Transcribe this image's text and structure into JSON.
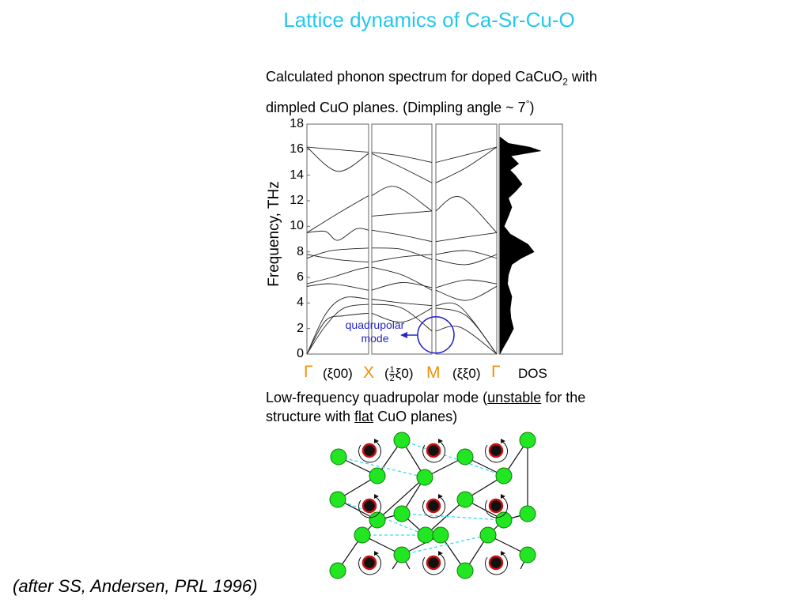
{
  "slide": {
    "title": "Lattice dynamics of Ca-Sr-Cu-O",
    "caption_top": {
      "line1_a": "Calculated phonon spectrum for doped CaCuO",
      "line1_sub": "2",
      "line1_b": " with",
      "line2_a": "dimpled CuO planes. (Dimpling angle ~ 7",
      "line2_sup": "°",
      "line2_b": ")"
    },
    "caption_bottom": {
      "a": "Low-frequency quadrupolar mode (",
      "unstable": "unstable",
      "b": " for the",
      "c": "structure with ",
      "flat": "flat",
      "d": " CuO planes)"
    },
    "citation": "(after SS, Andersen, PRL 1996)"
  },
  "chart_data": {
    "type": "line",
    "ylabel": "Frequency,  THz",
    "ylim": [
      0,
      18
    ],
    "yticks": [
      "0",
      "2",
      "4",
      "6",
      "8",
      "10",
      "12",
      "14",
      "16",
      "18"
    ],
    "x_labels": {
      "gamma1": "Γ",
      "dir1": "(ξ00)",
      "x": "X",
      "dir2_open": "(",
      "dir2_num": "1",
      "dir2_den": "2",
      "dir2_close": "ξ0)",
      "m": "M",
      "dir3": "(ξξ0)",
      "gamma2": "Γ",
      "dos": "DOS"
    },
    "annotation": {
      "line1": "quadrupolar",
      "line2": "mode"
    },
    "panels": [
      {
        "name": "Gamma-X",
        "branches": [
          [
            [
              0,
              0
            ],
            [
              0.3,
              2.2
            ],
            [
              0.6,
              3.6
            ],
            [
              1,
              3.9
            ]
          ],
          [
            [
              0,
              0
            ],
            [
              0.3,
              3.1
            ],
            [
              0.6,
              4.4
            ],
            [
              1,
              4.3
            ]
          ],
          [
            [
              0,
              0
            ],
            [
              0.3,
              2.6
            ],
            [
              0.6,
              3.0
            ],
            [
              1,
              3.2
            ]
          ],
          [
            [
              0,
              5.5
            ],
            [
              0.4,
              6.0
            ],
            [
              0.8,
              6.6
            ],
            [
              1,
              6.8
            ]
          ],
          [
            [
              0,
              5.3
            ],
            [
              0.4,
              5.5
            ],
            [
              1,
              5.0
            ]
          ],
          [
            [
              0,
              7.5
            ],
            [
              0.4,
              8.1
            ],
            [
              1,
              8.3
            ]
          ],
          [
            [
              0,
              7.8
            ],
            [
              0.5,
              7.4
            ],
            [
              1,
              7.2
            ]
          ],
          [
            [
              0,
              9.5
            ],
            [
              0.3,
              9.6
            ],
            [
              0.5,
              8.9
            ],
            [
              0.8,
              9.8
            ],
            [
              1,
              9.7
            ]
          ],
          [
            [
              0,
              9.5
            ],
            [
              0.5,
              11.0
            ],
            [
              1,
              12.4
            ]
          ],
          [
            [
              0,
              16.2
            ],
            [
              0.5,
              14.3
            ],
            [
              1,
              15.7
            ]
          ],
          [
            [
              0,
              16.2
            ],
            [
              0.5,
              16.0
            ],
            [
              1,
              15.8
            ]
          ]
        ]
      },
      {
        "name": "X-M",
        "branches": [
          [
            [
              0,
              3.9
            ],
            [
              0.5,
              3.6
            ],
            [
              1,
              1.8
            ]
          ],
          [
            [
              0,
              4.3
            ],
            [
              0.5,
              4.0
            ],
            [
              1,
              3.8
            ]
          ],
          [
            [
              0,
              3.2
            ],
            [
              0.5,
              2.5
            ],
            [
              1,
              3.6
            ]
          ],
          [
            [
              0,
              6.8
            ],
            [
              0.5,
              6.2
            ],
            [
              1,
              5.0
            ]
          ],
          [
            [
              0,
              5.0
            ],
            [
              0.5,
              5.6
            ],
            [
              1,
              5.2
            ]
          ],
          [
            [
              0,
              8.3
            ],
            [
              0.5,
              8.2
            ],
            [
              1,
              7.4
            ]
          ],
          [
            [
              0,
              7.2
            ],
            [
              0.5,
              7.6
            ],
            [
              1,
              7.8
            ]
          ],
          [
            [
              0,
              9.7
            ],
            [
              0.5,
              9.3
            ],
            [
              1,
              8.8
            ]
          ],
          [
            [
              0,
              10.8
            ],
            [
              0.5,
              11.0
            ],
            [
              1,
              11.2
            ]
          ],
          [
            [
              0,
              12.4
            ],
            [
              0.4,
              13.1
            ],
            [
              1,
              11.2
            ]
          ],
          [
            [
              0,
              15.7
            ],
            [
              0.5,
              14.6
            ],
            [
              1,
              13.4
            ]
          ],
          [
            [
              0,
              15.8
            ],
            [
              0.5,
              15.5
            ],
            [
              1,
              15.0
            ]
          ]
        ]
      },
      {
        "name": "M-Gamma",
        "branches": [
          [
            [
              0,
              1.8
            ],
            [
              0.4,
              2.1
            ],
            [
              1,
              0
            ]
          ],
          [
            [
              0,
              3.8
            ],
            [
              0.4,
              3.7
            ],
            [
              1,
              0
            ]
          ],
          [
            [
              0,
              3.6
            ],
            [
              0.5,
              3.0
            ],
            [
              1,
              0
            ]
          ],
          [
            [
              0,
              5.0
            ],
            [
              0.5,
              4.2
            ],
            [
              1,
              5.3
            ]
          ],
          [
            [
              0,
              5.2
            ],
            [
              0.5,
              5.8
            ],
            [
              1,
              5.5
            ]
          ],
          [
            [
              0,
              7.4
            ],
            [
              0.5,
              7.0
            ],
            [
              1,
              7.8
            ]
          ],
          [
            [
              0,
              7.8
            ],
            [
              0.5,
              8.1
            ],
            [
              1,
              7.5
            ]
          ],
          [
            [
              0,
              8.8
            ],
            [
              0.4,
              9.1
            ],
            [
              1,
              9.5
            ]
          ],
          [
            [
              0,
              11.2
            ],
            [
              0.4,
              12.3
            ],
            [
              1,
              9.5
            ]
          ],
          [
            [
              0,
              13.4
            ],
            [
              0.5,
              14.6
            ],
            [
              1,
              16.2
            ]
          ],
          [
            [
              0,
              15.0
            ],
            [
              0.5,
              15.6
            ],
            [
              1,
              16.2
            ]
          ]
        ]
      }
    ],
    "dos": [
      [
        0,
        0
      ],
      [
        0.5,
        0.4
      ],
      [
        1.2,
        1.0
      ],
      [
        2.0,
        1.6
      ],
      [
        2.8,
        1.3
      ],
      [
        3.5,
        1.2
      ],
      [
        4.5,
        1.4
      ],
      [
        5.5,
        0.9
      ],
      [
        6.2,
        1.0
      ],
      [
        7.0,
        1.4
      ],
      [
        7.5,
        2.5
      ],
      [
        8.0,
        4.0
      ],
      [
        8.6,
        3.3
      ],
      [
        9.4,
        1.2
      ],
      [
        10.0,
        0.5
      ],
      [
        10.8,
        1.0
      ],
      [
        11.5,
        1.4
      ],
      [
        12.2,
        1.0
      ],
      [
        12.7,
        1.8
      ],
      [
        13.3,
        2.6
      ],
      [
        14.0,
        1.8
      ],
      [
        14.4,
        1.2
      ],
      [
        14.9,
        2.2
      ],
      [
        15.5,
        1.3
      ],
      [
        15.9,
        4.8
      ],
      [
        16.2,
        3.5
      ],
      [
        16.5,
        1.0
      ],
      [
        17.0,
        0
      ],
      [
        0,
        0
      ]
    ],
    "grid": false
  },
  "lattice": {
    "green_color": "#22e622",
    "ion_fill": "#111111",
    "ion_ring": "#cc1111",
    "dash_color": "#33ddee"
  }
}
